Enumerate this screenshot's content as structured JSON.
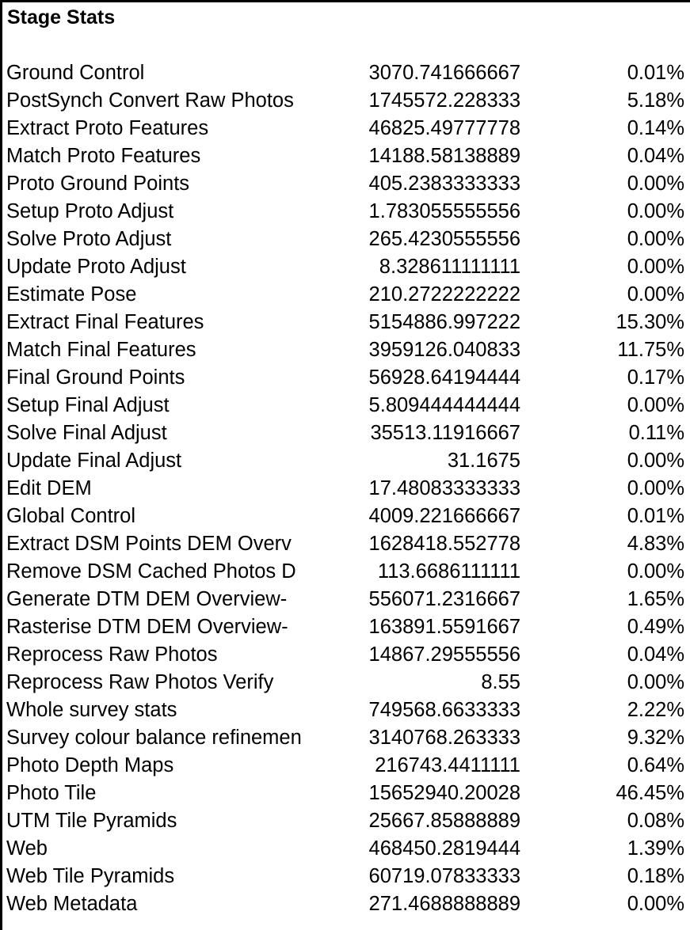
{
  "sheet": {
    "title": "Stage Stats",
    "rows": [
      {
        "stage": "Ground Control",
        "value": "3070.741666667",
        "percent": "0.01%"
      },
      {
        "stage": "PostSynch Convert Raw Photos",
        "value": "1745572.228333",
        "percent": "5.18%"
      },
      {
        "stage": "Extract Proto Features",
        "value": "46825.49777778",
        "percent": "0.14%"
      },
      {
        "stage": "Match Proto Features",
        "value": "14188.58138889",
        "percent": "0.04%"
      },
      {
        "stage": "Proto Ground Points",
        "value": "405.2383333333",
        "percent": "0.00%"
      },
      {
        "stage": "Setup Proto Adjust",
        "value": "1.783055555556",
        "percent": "0.00%"
      },
      {
        "stage": "Solve Proto Adjust",
        "value": "265.4230555556",
        "percent": "0.00%"
      },
      {
        "stage": "Update Proto Adjust",
        "value": "8.328611111111",
        "percent": "0.00%"
      },
      {
        "stage": "Estimate Pose",
        "value": "210.2722222222",
        "percent": "0.00%"
      },
      {
        "stage": "Extract Final Features",
        "value": "5154886.997222",
        "percent": "15.30%"
      },
      {
        "stage": "Match Final Features",
        "value": "3959126.040833",
        "percent": "11.75%"
      },
      {
        "stage": "Final Ground Points",
        "value": "56928.64194444",
        "percent": "0.17%"
      },
      {
        "stage": "Setup Final Adjust",
        "value": "5.809444444444",
        "percent": "0.00%"
      },
      {
        "stage": "Solve Final Adjust",
        "value": "35513.11916667",
        "percent": "0.11%"
      },
      {
        "stage": "Update Final Adjust",
        "value": "31.1675",
        "percent": "0.00%"
      },
      {
        "stage": "Edit DEM",
        "value": "17.48083333333",
        "percent": "0.00%"
      },
      {
        "stage": "Global Control",
        "value": "4009.221666667",
        "percent": "0.01%"
      },
      {
        "stage": "Extract DSM Points DEM Overv",
        "value": "1628418.552778",
        "percent": "4.83%"
      },
      {
        "stage": "Remove DSM Cached Photos D",
        "value": "113.6686111111",
        "percent": "0.00%"
      },
      {
        "stage": "Generate DTM DEM Overview-",
        "value": "556071.2316667",
        "percent": "1.65%"
      },
      {
        "stage": "Rasterise DTM DEM Overview-",
        "value": "163891.5591667",
        "percent": "0.49%"
      },
      {
        "stage": "Reprocess Raw Photos",
        "value": "14867.29555556",
        "percent": "0.04%"
      },
      {
        "stage": "Reprocess Raw Photos Verify",
        "value": "8.55",
        "percent": "0.00%"
      },
      {
        "stage": "Whole survey stats",
        "value": "749568.6633333",
        "percent": "2.22%"
      },
      {
        "stage": "Survey colour balance refinemen",
        "value": "3140768.263333",
        "percent": "9.32%"
      },
      {
        "stage": "Photo Depth Maps",
        "value": "216743.4411111",
        "percent": "0.64%"
      },
      {
        "stage": "Photo Tile",
        "value": "15652940.20028",
        "percent": "46.45%"
      },
      {
        "stage": "UTM Tile Pyramids",
        "value": "25667.85888889",
        "percent": "0.08%"
      },
      {
        "stage": "Web",
        "value": "468450.2819444",
        "percent": "1.39%"
      },
      {
        "stage": "Web Tile Pyramids",
        "value": "60719.07833333",
        "percent": "0.18%"
      },
      {
        "stage": "Web Metadata",
        "value": "271.4688888889",
        "percent": "0.00%"
      }
    ]
  }
}
